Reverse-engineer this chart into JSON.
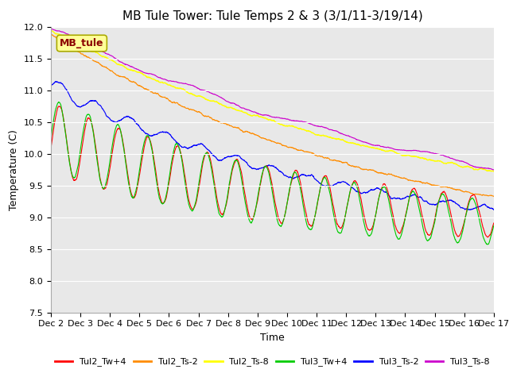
{
  "title": "MB Tule Tower: Tule Temps 2 & 3 (3/1/11-3/19/14)",
  "xlabel": "Time",
  "ylabel": "Temperature (C)",
  "ylim": [
    7.5,
    12.0
  ],
  "xlim": [
    0,
    15
  ],
  "xtick_labels": [
    "Dec 2",
    "Dec 3",
    "Dec 4",
    "Dec 5",
    "Dec 6",
    "Dec 7",
    "Dec 8",
    "Dec 9",
    "Dec 10",
    "Dec 11",
    "Dec 12",
    "Dec 13",
    "Dec 14",
    "Dec 15",
    "Dec 16",
    "Dec 17"
  ],
  "xtick_positions": [
    0,
    1,
    2,
    3,
    4,
    5,
    6,
    7,
    8,
    9,
    10,
    11,
    12,
    13,
    14,
    15
  ],
  "ytick_positions": [
    7.5,
    8.0,
    8.5,
    9.0,
    9.5,
    10.0,
    10.5,
    11.0,
    11.5,
    12.0
  ],
  "legend_label": "MB_tule",
  "legend_label_color": "#8B0000",
  "legend_box_facecolor": "#FFFF99",
  "legend_box_edgecolor": "#AAAA00",
  "bg_color": "#E8E8E8",
  "lines": [
    {
      "label": "Tul2_Tw+4",
      "color": "#FF0000",
      "lw": 0.8
    },
    {
      "label": "Tul2_Ts-2",
      "color": "#FF8C00",
      "lw": 0.8
    },
    {
      "label": "Tul2_Ts-8",
      "color": "#FFFF00",
      "lw": 1.0
    },
    {
      "label": "Tul3_Tw+4",
      "color": "#00CC00",
      "lw": 0.8
    },
    {
      "label": "Tul3_Ts-2",
      "color": "#0000FF",
      "lw": 0.8
    },
    {
      "label": "Tul3_Ts-8",
      "color": "#CC00CC",
      "lw": 0.8
    }
  ],
  "grid_color": "#FFFFFF",
  "title_fontsize": 11,
  "axis_label_fontsize": 9,
  "tick_fontsize": 8,
  "legend_fontsize": 8,
  "figsize": [
    6.4,
    4.8
  ],
  "dpi": 100
}
